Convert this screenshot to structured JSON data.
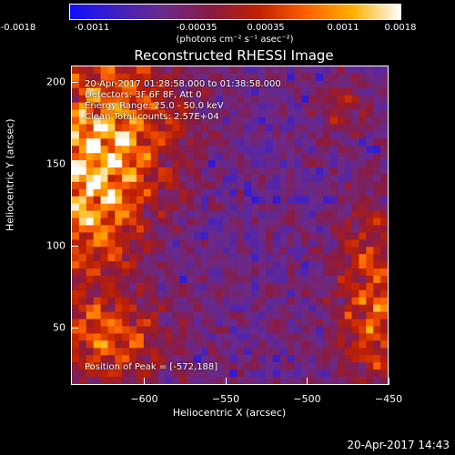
{
  "colorbar": {
    "tick_labels": [
      "-0.0018",
      "-0.0011",
      "-0.00035",
      "0.00035",
      "0.0011",
      "0.0018"
    ],
    "units": "(photons cm⁻² s⁻¹ asec⁻²)",
    "colors": [
      "#1010ff",
      "#4020c0",
      "#6a2a8a",
      "#8a1a40",
      "#c02000",
      "#ff6000",
      "#ffb000",
      "#ffffff"
    ]
  },
  "annotations": {
    "time_range": "20-Apr-2017 01:28:58.000 to 01:38:58.000",
    "detectors": "Detectors: 3F 6F 8F, Att 0",
    "energy_range": "Energy Range: 25.0 - 50.0 keV",
    "algorithm": "Clean    Total counts: 2.57E+04",
    "peak": "Position of Peak = [-572,188]"
  },
  "timestamp": "20-Apr-2017 14:43",
  "chart_data": {
    "type": "heatmap",
    "title": "Reconstructed RHESSI Image",
    "xlabel": "Heliocentric X (arcsec)",
    "ylabel": "Heliocentric Y (arcsec)",
    "xlim": [
      -645,
      -450
    ],
    "ylim": [
      15,
      210
    ],
    "x_ticks": [
      -600,
      -550,
      -500,
      -450
    ],
    "y_ticks": [
      50,
      100,
      150,
      200
    ],
    "x_tick_labels": [
      "−600",
      "−550",
      "−500",
      "−450"
    ],
    "y_tick_labels": [
      "50",
      "100",
      "150",
      "200"
    ],
    "zlim": [
      -0.0018,
      0.0018
    ],
    "peak_position": [
      -572,
      188
    ],
    "grid": false
  }
}
